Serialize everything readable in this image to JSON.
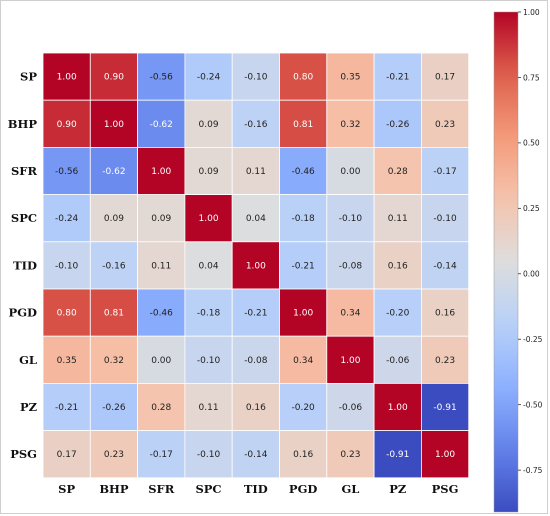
{
  "chart_data": {
    "type": "heatmap",
    "title": "",
    "xlabel": "",
    "ylabel": "",
    "labels": [
      "SP",
      "BHP",
      "SFR",
      "SPC",
      "TID",
      "PGD",
      "GL",
      "PZ",
      "PSG"
    ],
    "matrix": [
      [
        1.0,
        0.9,
        -0.56,
        -0.24,
        -0.1,
        0.8,
        0.35,
        -0.21,
        0.17
      ],
      [
        0.9,
        1.0,
        -0.62,
        0.09,
        -0.16,
        0.81,
        0.32,
        -0.26,
        0.23
      ],
      [
        -0.56,
        -0.62,
        1.0,
        0.09,
        0.11,
        -0.46,
        0.0,
        0.28,
        -0.17
      ],
      [
        -0.24,
        0.09,
        0.09,
        1.0,
        0.04,
        -0.18,
        -0.1,
        0.11,
        -0.1
      ],
      [
        -0.1,
        -0.16,
        0.11,
        0.04,
        1.0,
        -0.21,
        -0.08,
        0.16,
        -0.14
      ],
      [
        0.8,
        0.81,
        -0.46,
        -0.18,
        -0.21,
        1.0,
        0.34,
        -0.2,
        0.16
      ],
      [
        0.35,
        0.32,
        0.0,
        -0.1,
        -0.08,
        0.34,
        1.0,
        -0.06,
        0.23
      ],
      [
        -0.21,
        -0.26,
        0.28,
        0.11,
        0.16,
        -0.2,
        -0.06,
        1.0,
        -0.91
      ],
      [
        0.17,
        0.23,
        -0.17,
        -0.1,
        -0.14,
        0.16,
        0.23,
        -0.91,
        1.0
      ]
    ],
    "colormap": "coolwarm",
    "color_range": [
      -0.91,
      1.0
    ],
    "colorbar": {
      "ticks": [
        "1.00",
        "0.75",
        "0.50",
        "0.25",
        "0.00",
        "-0.25",
        "-0.50",
        "-0.75"
      ],
      "tick_values": [
        1.0,
        0.75,
        0.5,
        0.25,
        0.0,
        -0.25,
        -0.5,
        -0.75
      ],
      "placement": "right"
    },
    "grid": true,
    "grid_color": "#ffffff"
  }
}
